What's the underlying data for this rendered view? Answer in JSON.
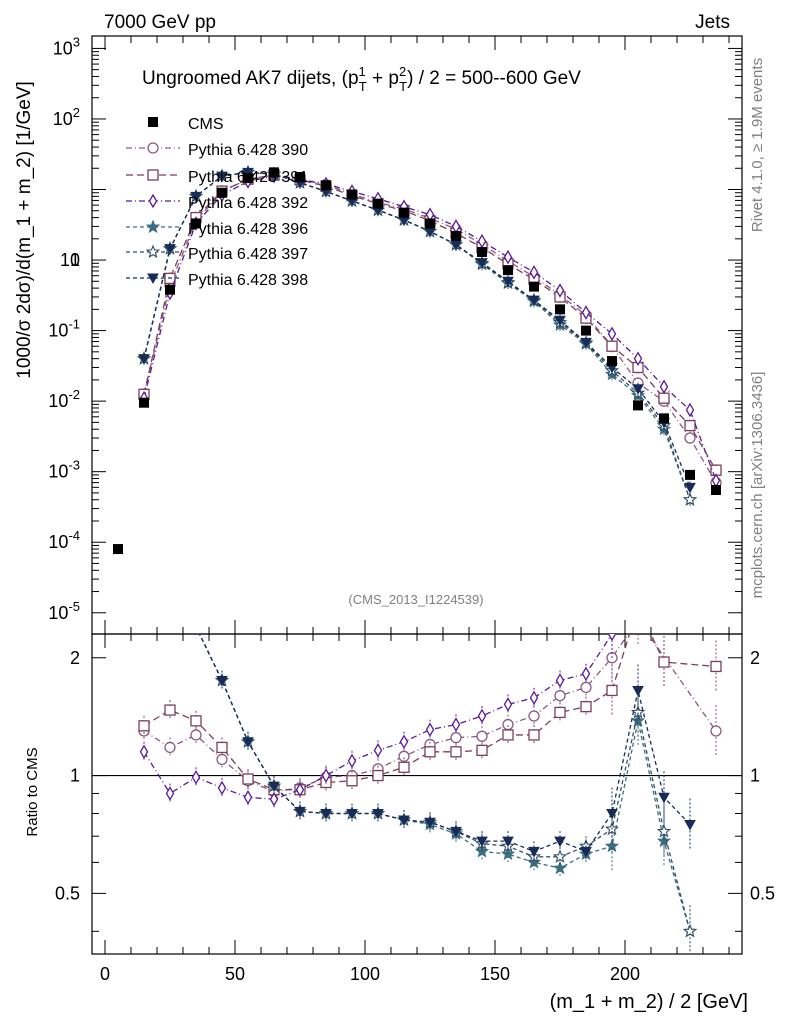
{
  "header": {
    "left": "7000 GeV pp",
    "right": "Jets"
  },
  "side_labels": {
    "rivet": "Rivet 4.1.0, ≥ 1.9M events",
    "mcplots": "mcplots.cern.ch [arXiv:1306.3436]"
  },
  "chart_data": {
    "type": "scatter",
    "title": "Ungroomed AK7 dijets, (p_T^1 + p_T^2) / 2 = 500--600 GeV",
    "watermark": "(CMS_2013_I1224539)",
    "xlabel": "(m_1 + m_2) / 2 [GeV]",
    "ylabel": "1000/σ   2dσ)/d(m_1 + m_2) [1/GeV]",
    "ratio_ylabel": "Ratio to CMS",
    "xlim": [
      -5,
      245
    ],
    "ylim": [
      5e-06,
      1500
    ],
    "ratio_ylim": [
      0.35,
      2.3
    ],
    "yscale": "log",
    "x_ticks": [
      "0",
      "50",
      "100",
      "150",
      "200"
    ],
    "y_ticks": [
      "10^-5",
      "10^-4",
      "10^-3",
      "10^-2",
      "10^-1",
      "1",
      "10",
      "10^2",
      "10^3"
    ],
    "ratio_ticks": [
      "0.5",
      "1",
      "2"
    ],
    "colors": {
      "cms": "#000000",
      "p390": "#8a5a84",
      "p391": "#7b3f5a",
      "p392": "#5a1a96",
      "p396": "#3d6e82",
      "p397": "#2e5068",
      "p398": "#182c58"
    },
    "x": [
      5,
      15,
      25,
      35,
      45,
      55,
      65,
      75,
      85,
      95,
      105,
      115,
      125,
      135,
      145,
      155,
      165,
      175,
      185,
      195,
      205,
      215,
      225,
      235
    ],
    "data": {
      "name": "CMS",
      "values": [
        8e-05,
        0.0095,
        0.38,
        3.3,
        9.0,
        14.5,
        17.5,
        15.0,
        11.5,
        8.5,
        6.3,
        4.7,
        3.3,
        2.2,
        1.3,
        0.72,
        0.42,
        0.2,
        0.1,
        0.037,
        0.0087,
        0.0057,
        0.0009,
        0.00055
      ]
    },
    "series": [
      {
        "name": "Pythia 6.428 390",
        "marker": "circle-open",
        "color": "#8a5a84",
        "values": [
          null,
          0.0125,
          0.44,
          3.6,
          9.4,
          14.0,
          16.0,
          14.0,
          11.7,
          8.6,
          6.6,
          5.3,
          3.9,
          2.75,
          1.67,
          0.97,
          0.58,
          0.32,
          0.165,
          0.06,
          0.018,
          0.01,
          0.003,
          0.0007
        ],
        "ratio": [
          null,
          1.3,
          1.18,
          1.27,
          1.1,
          0.97,
          0.91,
          0.93,
          0.99,
          1.0,
          1.04,
          1.12,
          1.2,
          1.25,
          1.26,
          1.35,
          1.42,
          1.6,
          1.68,
          2.0,
          2.5,
          null,
          null,
          1.3
        ]
      },
      {
        "name": "Pythia 6.428 391",
        "marker": "square-open",
        "color": "#7b3f5a",
        "values": [
          null,
          0.0125,
          0.55,
          4.0,
          9.5,
          14.0,
          16.0,
          13.7,
          11.1,
          8.2,
          6.3,
          5.0,
          3.6,
          2.4,
          1.5,
          0.88,
          0.53,
          0.3,
          0.15,
          0.06,
          0.03,
          0.011,
          0.0045,
          0.00105
        ],
        "ratio": [
          null,
          1.34,
          1.47,
          1.38,
          1.18,
          0.98,
          0.92,
          0.92,
          0.96,
          0.97,
          1.0,
          1.05,
          1.15,
          1.15,
          1.16,
          1.27,
          1.27,
          1.45,
          1.5,
          1.65,
          2.7,
          1.95,
          null,
          1.9
        ]
      },
      {
        "name": "Pythia 6.428 392",
        "marker": "diamond-open",
        "color": "#5a1a96",
        "values": [
          null,
          0.011,
          0.34,
          3.3,
          8.4,
          13.0,
          15.5,
          13.8,
          12.0,
          9.4,
          7.4,
          5.7,
          4.4,
          3.0,
          1.85,
          1.1,
          0.67,
          0.37,
          0.18,
          0.09,
          0.04,
          0.016,
          0.0075,
          0.00075
        ],
        "ratio": [
          null,
          1.15,
          0.9,
          0.99,
          0.93,
          0.88,
          0.87,
          0.92,
          1.0,
          1.09,
          1.16,
          1.22,
          1.31,
          1.35,
          1.42,
          1.52,
          1.58,
          1.75,
          1.82,
          2.3,
          null,
          null,
          null,
          null
        ]
      },
      {
        "name": "Pythia 6.428 396",
        "marker": "star-filled",
        "color": "#3d6e82",
        "values": [
          null,
          0.04,
          1.45,
          8.0,
          15.5,
          17.5,
          16.5,
          12.5,
          9.4,
          6.9,
          5.1,
          3.7,
          2.55,
          1.65,
          0.87,
          0.47,
          0.26,
          0.12,
          0.065,
          0.024,
          0.012,
          0.004,
          0.0004,
          null
        ],
        "ratio": [
          null,
          4.2,
          3.8,
          2.4,
          1.75,
          1.22,
          0.94,
          0.81,
          0.8,
          0.8,
          0.8,
          0.77,
          0.75,
          0.71,
          0.64,
          0.63,
          0.6,
          0.58,
          0.63,
          0.66,
          1.38,
          0.68,
          0.4,
          null
        ]
      },
      {
        "name": "Pythia 6.428 397",
        "marker": "star-open",
        "color": "#2e5068",
        "values": [
          null,
          0.04,
          1.45,
          8.0,
          15.5,
          17.5,
          16.5,
          12.5,
          9.4,
          6.9,
          5.1,
          3.7,
          2.55,
          1.65,
          0.9,
          0.48,
          0.27,
          0.13,
          0.067,
          0.027,
          0.013,
          0.0045,
          0.0004,
          null
        ],
        "ratio": [
          null,
          4.2,
          3.8,
          2.4,
          1.75,
          1.22,
          0.94,
          0.81,
          0.8,
          0.8,
          0.8,
          0.77,
          0.76,
          0.72,
          0.67,
          0.66,
          0.62,
          0.62,
          0.66,
          0.73,
          1.45,
          0.72,
          0.4,
          null
        ]
      },
      {
        "name": "Pythia 6.428 398",
        "marker": "triangle-down-filled",
        "color": "#182c58",
        "values": [
          null,
          0.04,
          1.45,
          8.0,
          15.5,
          17.5,
          16.5,
          12.5,
          9.4,
          6.9,
          5.1,
          3.7,
          2.55,
          1.65,
          0.92,
          0.5,
          0.27,
          0.14,
          0.068,
          0.03,
          0.015,
          0.005,
          0.0006,
          null
        ],
        "ratio": [
          null,
          4.2,
          3.8,
          2.4,
          1.75,
          1.22,
          0.94,
          0.81,
          0.8,
          0.8,
          0.8,
          0.77,
          0.76,
          0.72,
          0.68,
          0.68,
          0.64,
          0.68,
          0.64,
          0.8,
          1.65,
          0.88,
          0.75,
          null
        ]
      }
    ]
  }
}
